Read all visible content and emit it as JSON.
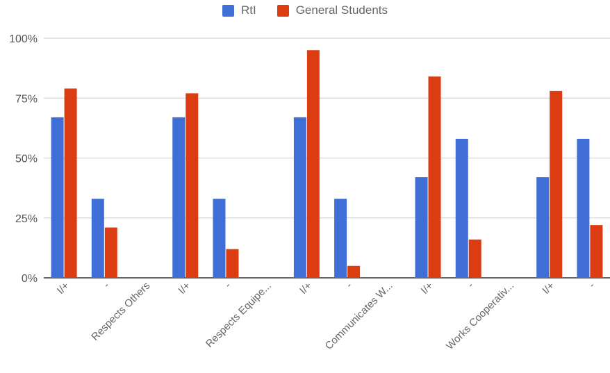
{
  "chart_data": {
    "type": "bar",
    "categories": [
      "I/+",
      "-",
      "Respects Others",
      "I/+",
      "-",
      "Respects Equipe...",
      "I/+",
      "-",
      "Communicates W...",
      "I/+",
      "-",
      "Works Cooperativ...",
      "I/+",
      "-"
    ],
    "series": [
      {
        "name": "RtI",
        "color": "#3f6fd6",
        "values": [
          67,
          33,
          null,
          67,
          33,
          null,
          67,
          33,
          null,
          42,
          58,
          null,
          42,
          58
        ]
      },
      {
        "name": "General Students",
        "color": "#dc3c12",
        "values": [
          79,
          21,
          null,
          77,
          12,
          null,
          95,
          5,
          null,
          84,
          16,
          null,
          78,
          22
        ]
      }
    ],
    "yticks": [
      "0%",
      "25%",
      "50%",
      "75%",
      "100%"
    ],
    "ylim": [
      0,
      100
    ],
    "grid": true,
    "legend_position": "top-center",
    "title": "",
    "xlabel": "",
    "ylabel": ""
  }
}
